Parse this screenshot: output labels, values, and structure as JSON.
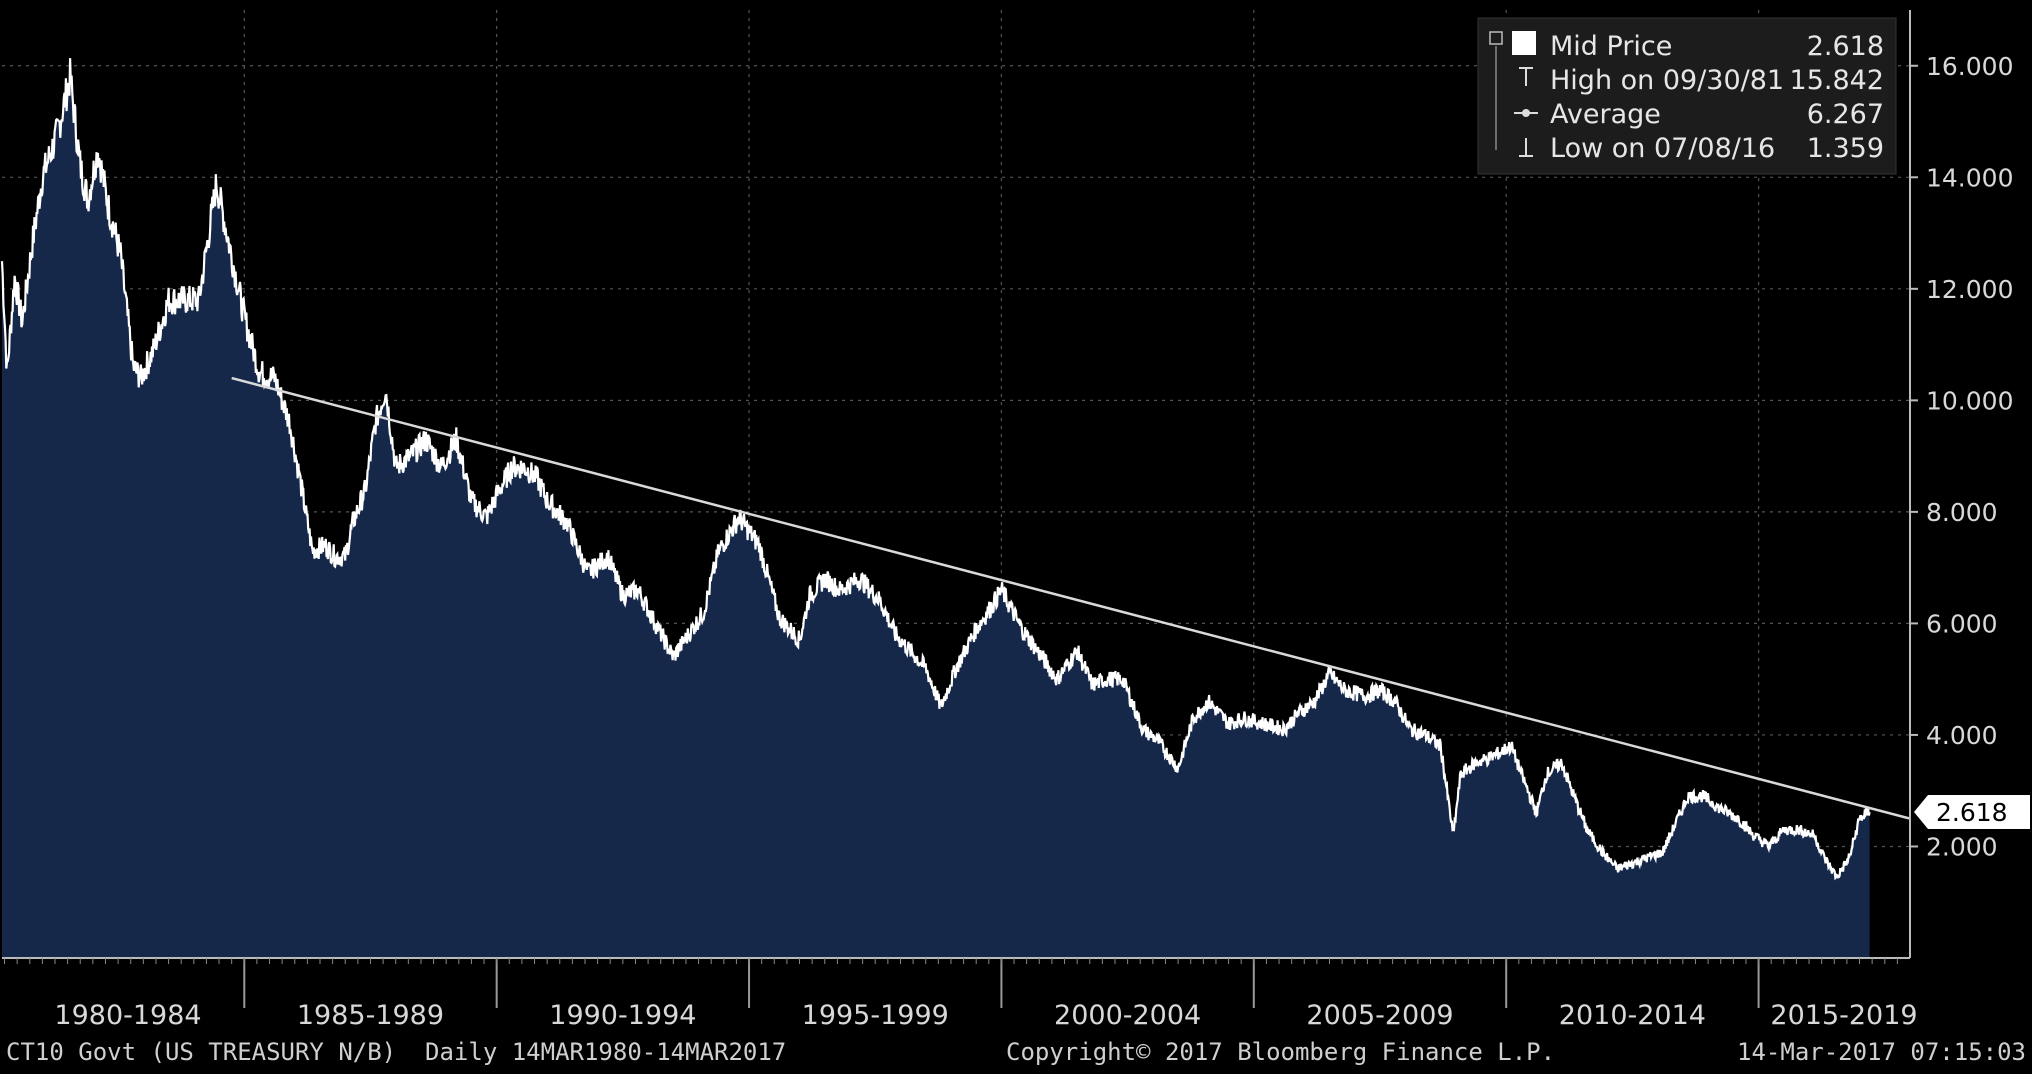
{
  "chart_data": {
    "type": "area",
    "title": "",
    "series_name": "Mid Price",
    "xlabel": "",
    "ylabel": "",
    "x_range": [
      1980.2,
      2017.2
    ],
    "ylim": [
      0,
      17
    ],
    "y_ticks": [
      "2.000",
      "4.000",
      "6.000",
      "8.000",
      "10.000",
      "12.000",
      "14.000",
      "16.000"
    ],
    "y_tick_values": [
      2,
      4,
      6,
      8,
      10,
      12,
      14,
      16
    ],
    "x_ticks": [
      "1980-1984",
      "1985-1989",
      "1990-1994",
      "1995-1999",
      "2000-2004",
      "2005-2009",
      "2010-2014",
      "2015-2019"
    ],
    "x_tick_centers": [
      1982.5,
      1987.5,
      1992.5,
      1997.5,
      2002.5,
      2007.5,
      2012.5,
      2017.5
    ],
    "x": [
      1980.2,
      1980.3,
      1980.45,
      1980.6,
      1980.8,
      1981.0,
      1981.3,
      1981.55,
      1981.75,
      1981.9,
      1982.1,
      1982.3,
      1982.55,
      1982.8,
      1982.95,
      1983.2,
      1983.5,
      1983.8,
      1984.1,
      1984.45,
      1984.7,
      1985.0,
      1985.3,
      1985.6,
      1985.9,
      1986.1,
      1986.35,
      1986.6,
      1986.8,
      1987.0,
      1987.15,
      1987.4,
      1987.6,
      1987.8,
      1988.0,
      1988.3,
      1988.6,
      1988.9,
      1989.2,
      1989.5,
      1989.8,
      1990.0,
      1990.3,
      1990.55,
      1990.8,
      1991.0,
      1991.4,
      1991.8,
      1992.2,
      1992.5,
      1992.8,
      1993.2,
      1993.5,
      1993.8,
      1994.1,
      1994.4,
      1994.8,
      1995.2,
      1995.6,
      1996.0,
      1996.2,
      1996.5,
      1996.8,
      1997.2,
      1997.6,
      1997.9,
      1998.2,
      1998.5,
      1998.8,
      1999.1,
      1999.5,
      1999.8,
      2000.0,
      2000.4,
      2000.8,
      2001.1,
      2001.5,
      2001.8,
      2002.1,
      2002.4,
      2002.8,
      2003.1,
      2003.5,
      2003.8,
      2004.1,
      2004.5,
      2004.8,
      2005.2,
      2005.6,
      2005.9,
      2006.2,
      2006.5,
      2006.8,
      2007.2,
      2007.5,
      2007.8,
      2008.1,
      2008.4,
      2008.7,
      2008.95,
      2009.1,
      2009.4,
      2009.7,
      2010.1,
      2010.3,
      2010.6,
      2010.8,
      2011.1,
      2011.3,
      2011.6,
      2011.9,
      2012.2,
      2012.5,
      2012.8,
      2013.1,
      2013.4,
      2013.6,
      2013.9,
      2014.2,
      2014.6,
      2014.9,
      2015.2,
      2015.5,
      2015.8,
      2016.1,
      2016.3,
      2016.55,
      2016.8,
      2017.0,
      2017.2
    ],
    "values": [
      12.5,
      10.5,
      12.2,
      11.4,
      12.8,
      14.0,
      14.8,
      15.8,
      14.2,
      13.6,
      14.5,
      13.5,
      12.6,
      10.6,
      10.4,
      10.9,
      11.8,
      11.8,
      11.8,
      13.9,
      12.8,
      11.5,
      10.5,
      10.4,
      9.6,
      8.6,
      7.3,
      7.4,
      7.2,
      7.2,
      7.8,
      8.4,
      9.6,
      10.2,
      8.8,
      9.0,
      9.3,
      8.8,
      9.3,
      8.2,
      7.9,
      8.3,
      8.8,
      8.8,
      8.6,
      8.2,
      7.8,
      6.9,
      7.2,
      6.5,
      6.6,
      5.9,
      5.4,
      5.8,
      6.2,
      7.3,
      7.9,
      7.4,
      6.1,
      5.7,
      6.5,
      6.8,
      6.6,
      6.8,
      6.4,
      5.8,
      5.5,
      5.2,
      4.5,
      5.2,
      5.9,
      6.3,
      6.6,
      5.9,
      5.4,
      5.0,
      5.5,
      4.9,
      5.0,
      5.0,
      4.1,
      3.9,
      3.4,
      4.3,
      4.6,
      4.2,
      4.3,
      4.2,
      4.1,
      4.4,
      4.6,
      5.1,
      4.8,
      4.7,
      4.8,
      4.6,
      4.1,
      4.0,
      3.8,
      2.2,
      3.3,
      3.5,
      3.6,
      3.8,
      3.3,
      2.6,
      3.3,
      3.5,
      3.0,
      2.3,
      1.9,
      1.6,
      1.7,
      1.8,
      1.9,
      2.5,
      2.9,
      2.9,
      2.7,
      2.5,
      2.2,
      2.0,
      2.3,
      2.3,
      2.2,
      1.8,
      1.45,
      1.8,
      2.5,
      2.618
    ],
    "trendline": {
      "x": [
        1984.75,
        2018.0
      ],
      "y": [
        10.4,
        2.5
      ]
    },
    "legend": {
      "mid_price_label": "Mid Price",
      "mid_price_value": "2.618",
      "high_label": "High on 09/30/81",
      "high_value": "15.842",
      "average_label": "Average",
      "average_value": "6.267",
      "low_label": "Low on 07/08/16",
      "low_value": "1.359"
    },
    "last_value_tag": "2.618",
    "colors": {
      "background": "#000000",
      "area_fill": "#15284a",
      "line": "#ffffff",
      "grid": "#555555",
      "trendline": "#d9d9d9"
    }
  },
  "footer": {
    "left": "CT10 Govt (US TREASURY N/B)  Daily 14MAR1980-14MAR2017",
    "center": "Copyright© 2017 Bloomberg Finance L.P.",
    "right": "14-Mar-2017 07:15:03"
  }
}
